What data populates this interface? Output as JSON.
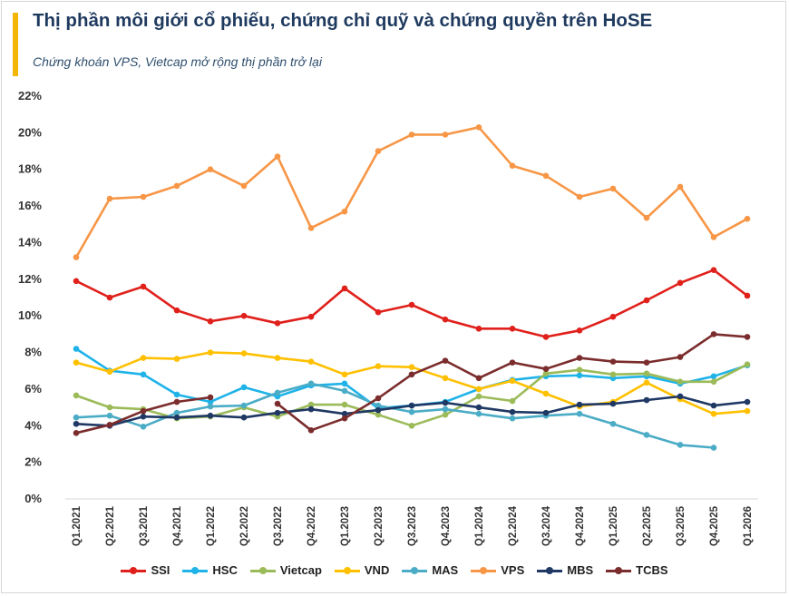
{
  "header": {
    "title": "Thị phần môi giới cổ phiếu, chứng chỉ quỹ và chứng quyền trên HoSE",
    "subtitle": "Chứng khoán VPS, Vietcap mở rộng thị phần trở lại"
  },
  "colors": {
    "accent": "#f2b705",
    "title": "#1f3a5f"
  },
  "chart_data": {
    "type": "line",
    "title": "Thị phần môi giới cổ phiếu, chứng chỉ quỹ và chứng quyền trên HoSE",
    "subtitle": "Chứng khoán VPS, Vietcap mở rộng thị phần trở lại",
    "xlabel": "",
    "ylabel": "",
    "ylim": [
      0,
      22
    ],
    "yticks": [
      "0%",
      "2%",
      "4%",
      "6%",
      "8%",
      "10%",
      "12%",
      "14%",
      "16%",
      "18%",
      "20%",
      "22%"
    ],
    "grid": false,
    "legend_position": "bottom",
    "categories": [
      "Q1.2021",
      "Q2.2021",
      "Q3.2021",
      "Q4.2021",
      "Q1.2022",
      "Q2.2022",
      "Q3.2022",
      "Q4.2022",
      "Q1.2023",
      "Q2.2023",
      "Q3.2023",
      "Q4.2023",
      "Q1.2024",
      "Q2.2024",
      "Q3.2024",
      "Q4.2024",
      "Q1.2025",
      "Q2.2025",
      "Q3.2025",
      "Q4.2025",
      "Q1.2026"
    ],
    "series": [
      {
        "name": "SSI",
        "color": "#e0201b",
        "values": [
          11.9,
          11.0,
          11.6,
          10.3,
          9.7,
          10.0,
          9.6,
          9.95,
          11.5,
          10.2,
          10.6,
          9.8,
          9.3,
          9.3,
          8.85,
          9.2,
          9.95,
          10.85,
          11.8,
          12.5,
          11.1
        ]
      },
      {
        "name": "HSC",
        "color": "#1fb3e8",
        "values": [
          8.2,
          7.0,
          6.8,
          5.7,
          5.3,
          6.1,
          5.6,
          6.2,
          6.3,
          4.95,
          5.1,
          5.3,
          6.0,
          6.5,
          6.7,
          6.75,
          6.6,
          6.7,
          6.3,
          6.7,
          7.3
        ]
      },
      {
        "name": "Vietcap",
        "color": "#9bbb59",
        "values": [
          5.65,
          5.0,
          4.9,
          4.4,
          4.5,
          5.0,
          4.5,
          5.15,
          5.15,
          4.6,
          4.0,
          4.6,
          5.6,
          5.35,
          6.85,
          7.05,
          6.8,
          6.85,
          6.4,
          6.4,
          7.35
        ]
      },
      {
        "name": "VND",
        "color": "#ffc000",
        "values": [
          7.45,
          6.95,
          7.7,
          7.65,
          8.0,
          7.95,
          7.7,
          7.5,
          6.8,
          7.25,
          7.2,
          6.6,
          6.0,
          6.45,
          5.75,
          5.05,
          5.3,
          6.35,
          5.45,
          4.65,
          4.8
        ]
      },
      {
        "name": "MAS",
        "color": "#4bacc6",
        "values": [
          4.45,
          4.55,
          3.95,
          4.7,
          5.05,
          5.1,
          5.8,
          6.3,
          5.9,
          5.1,
          4.75,
          4.9,
          4.65,
          4.4,
          4.55,
          4.65,
          4.1,
          3.5,
          2.95,
          2.8,
          null
        ]
      },
      {
        "name": "VPS",
        "color": "#f79646",
        "values": [
          13.2,
          16.4,
          16.5,
          17.1,
          18.0,
          17.1,
          18.7,
          14.8,
          15.7,
          19.0,
          19.9,
          19.9,
          20.3,
          18.2,
          17.65,
          16.5,
          16.95,
          15.35,
          17.05,
          14.3,
          15.3
        ]
      },
      {
        "name": "MBS",
        "color": "#1f3864",
        "values": [
          4.1,
          4.0,
          4.5,
          4.45,
          4.55,
          4.45,
          4.7,
          4.9,
          4.65,
          4.85,
          5.1,
          5.25,
          5.0,
          4.75,
          4.7,
          5.15,
          5.2,
          5.4,
          5.6,
          5.1,
          5.3
        ]
      },
      {
        "name": "TCBS",
        "color": "#7b2c2c",
        "values": [
          3.6,
          4.05,
          4.8,
          5.3,
          5.55,
          null,
          5.2,
          3.75,
          4.4,
          5.5,
          6.8,
          7.55,
          6.6,
          7.45,
          7.1,
          7.7,
          7.5,
          7.45,
          7.75,
          9.0,
          8.85
        ]
      }
    ]
  }
}
